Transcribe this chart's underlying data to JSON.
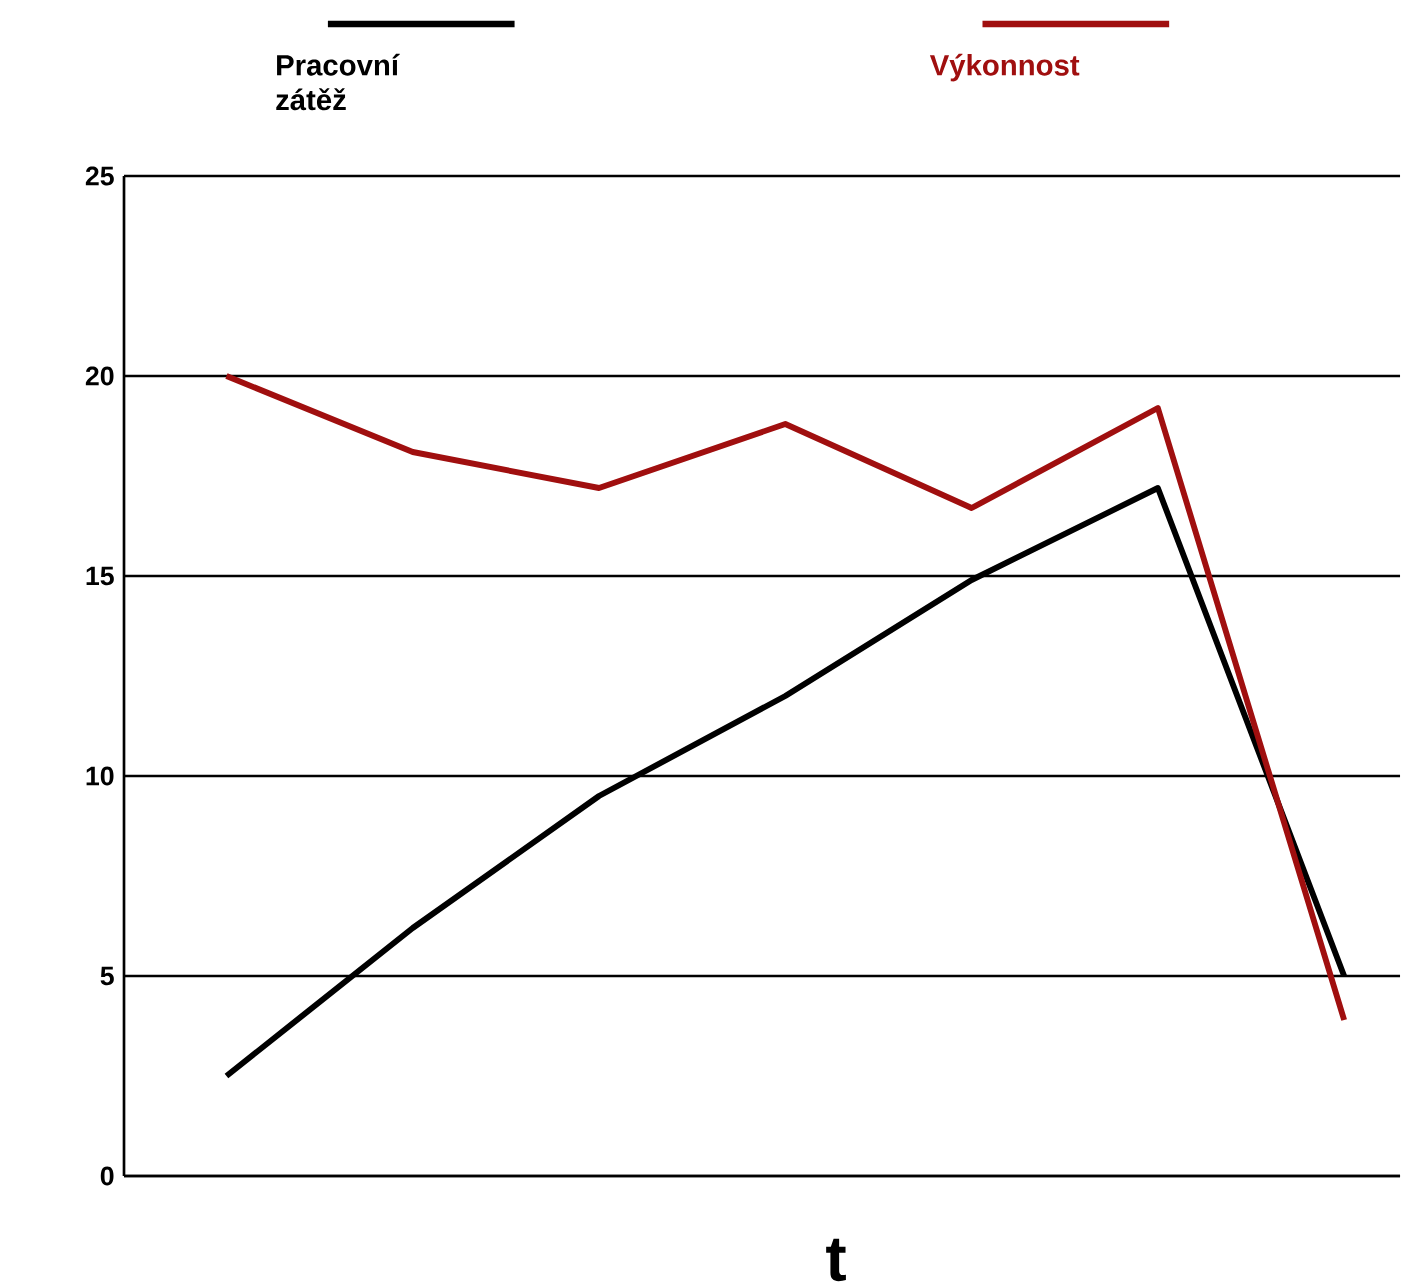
{
  "chart_data": {
    "type": "line",
    "xlabel": "t",
    "categories": [
      null,
      null,
      null,
      null,
      null,
      null,
      null
    ],
    "ylim": [
      0,
      25
    ],
    "yticks": [
      0,
      5,
      10,
      15,
      20,
      25
    ],
    "tick_labels": "y",
    "grid": "y",
    "legend": "top",
    "series": [
      {
        "name": "Pracovní zátěž",
        "color": "#000000",
        "values": [
          2.5,
          6.2,
          9.5,
          12,
          14.9,
          17.2,
          5
        ]
      },
      {
        "name": "Výkonnost",
        "color": "#a00f0f",
        "values": [
          20,
          18.1,
          17.2,
          18.8,
          16.7,
          19.2,
          3.9
        ]
      }
    ]
  }
}
